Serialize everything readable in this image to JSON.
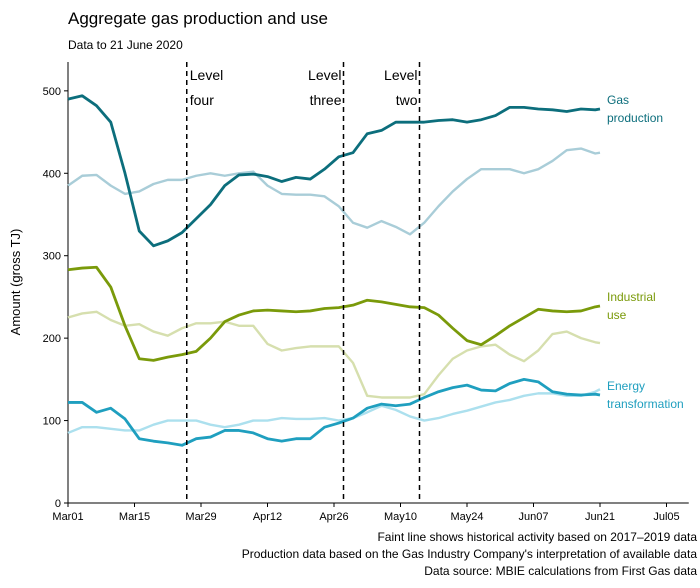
{
  "chart_data": {
    "type": "line",
    "title": "Aggregate gas production and use",
    "subtitle": "Data to 21 June 2020",
    "y_label": "Amount (gross TJ)",
    "x": [
      "03-01",
      "03-04",
      "03-07",
      "03-10",
      "03-13",
      "03-16",
      "03-19",
      "03-22",
      "03-25",
      "03-28",
      "03-31",
      "04-03",
      "04-06",
      "04-09",
      "04-12",
      "04-15",
      "04-18",
      "04-21",
      "04-24",
      "04-27",
      "04-30",
      "05-03",
      "05-06",
      "05-09",
      "05-12",
      "05-15",
      "05-18",
      "05-21",
      "05-24",
      "05-27",
      "05-30",
      "06-02",
      "06-05",
      "06-08",
      "06-11",
      "06-14",
      "06-17",
      "06-20",
      "06-21"
    ],
    "xlim": [
      "03-01",
      "07-08"
    ],
    "xticks": [
      {
        "value": "03-01",
        "label": "Mar01"
      },
      {
        "value": "03-15",
        "label": "Mar15"
      },
      {
        "value": "03-29",
        "label": "Mar29"
      },
      {
        "value": "04-12",
        "label": "Apr12"
      },
      {
        "value": "04-26",
        "label": "Apr26"
      },
      {
        "value": "05-10",
        "label": "May10"
      },
      {
        "value": "05-24",
        "label": "May24"
      },
      {
        "value": "06-07",
        "label": "Jun07"
      },
      {
        "value": "06-21",
        "label": "Jun21"
      },
      {
        "value": "07-05",
        "label": "Jul05"
      }
    ],
    "ylim": [
      0,
      535
    ],
    "yticks": [
      0,
      100,
      200,
      300,
      400,
      500
    ],
    "grid": false,
    "series": [
      {
        "color": "#a9cdd8",
        "values": [
          385,
          397,
          398,
          385,
          375,
          378,
          387,
          392,
          392,
          397,
          400,
          397,
          400,
          402,
          385,
          375,
          374,
          374,
          372,
          360,
          340,
          334,
          342,
          335,
          326,
          340,
          360,
          378,
          393,
          405,
          405,
          405,
          400,
          405,
          415,
          428,
          430,
          424,
          425
        ]
      },
      {
        "color": "#d6dfae",
        "values": [
          225,
          230,
          232,
          222,
          215,
          217,
          208,
          203,
          212,
          218,
          218,
          220,
          215,
          215,
          193,
          185,
          188,
          190,
          190,
          190,
          170,
          130,
          128,
          128,
          128,
          132,
          155,
          175,
          185,
          190,
          192,
          180,
          172,
          185,
          205,
          208,
          200,
          195,
          194
        ]
      },
      {
        "color": "#ace0ee",
        "values": [
          85,
          92,
          92,
          90,
          88,
          88,
          95,
          100,
          100,
          100,
          95,
          92,
          95,
          100,
          100,
          103,
          102,
          102,
          103,
          100,
          103,
          110,
          118,
          113,
          105,
          100,
          103,
          108,
          112,
          117,
          122,
          125,
          130,
          133,
          133,
          130,
          130,
          135,
          138
        ]
      },
      {
        "name": "Gas production",
        "color": "#0c6e7c",
        "values": [
          490,
          494,
          482,
          462,
          400,
          330,
          312,
          318,
          328,
          345,
          362,
          385,
          398,
          399,
          396,
          390,
          395,
          393,
          405,
          420,
          425,
          448,
          452,
          462,
          462,
          462,
          464,
          465,
          462,
          465,
          470,
          480,
          480,
          478,
          477,
          475,
          478,
          477,
          478
        ]
      },
      {
        "name": "Industrial use",
        "color": "#7a9a0a",
        "values": [
          283,
          285,
          286,
          262,
          215,
          175,
          173,
          177,
          180,
          184,
          200,
          220,
          228,
          233,
          234,
          233,
          232,
          233,
          236,
          237,
          240,
          246,
          244,
          241,
          238,
          237,
          228,
          212,
          197,
          192,
          203,
          215,
          225,
          235,
          233,
          232,
          233,
          238,
          239
        ]
      },
      {
        "name": "Energy transformation",
        "color": "#1f9fbf",
        "values": [
          122,
          122,
          110,
          115,
          102,
          78,
          75,
          73,
          70,
          78,
          80,
          88,
          88,
          85,
          78,
          75,
          78,
          78,
          92,
          97,
          103,
          115,
          120,
          118,
          120,
          128,
          135,
          140,
          143,
          137,
          136,
          145,
          150,
          147,
          135,
          132,
          131,
          132,
          131
        ]
      }
    ],
    "annotations": [
      {
        "x": "03-26",
        "label": "Level four"
      },
      {
        "x": "04-28",
        "label": "Level three"
      },
      {
        "x": "05-14",
        "label": "Level two"
      }
    ],
    "footnotes": [
      "Faint line shows historical activity based on 2017–2019 data",
      "Production data based on the Gas Industry Company's interpretation of available data",
      "Data source: MBIE calculations from First Gas data"
    ]
  }
}
